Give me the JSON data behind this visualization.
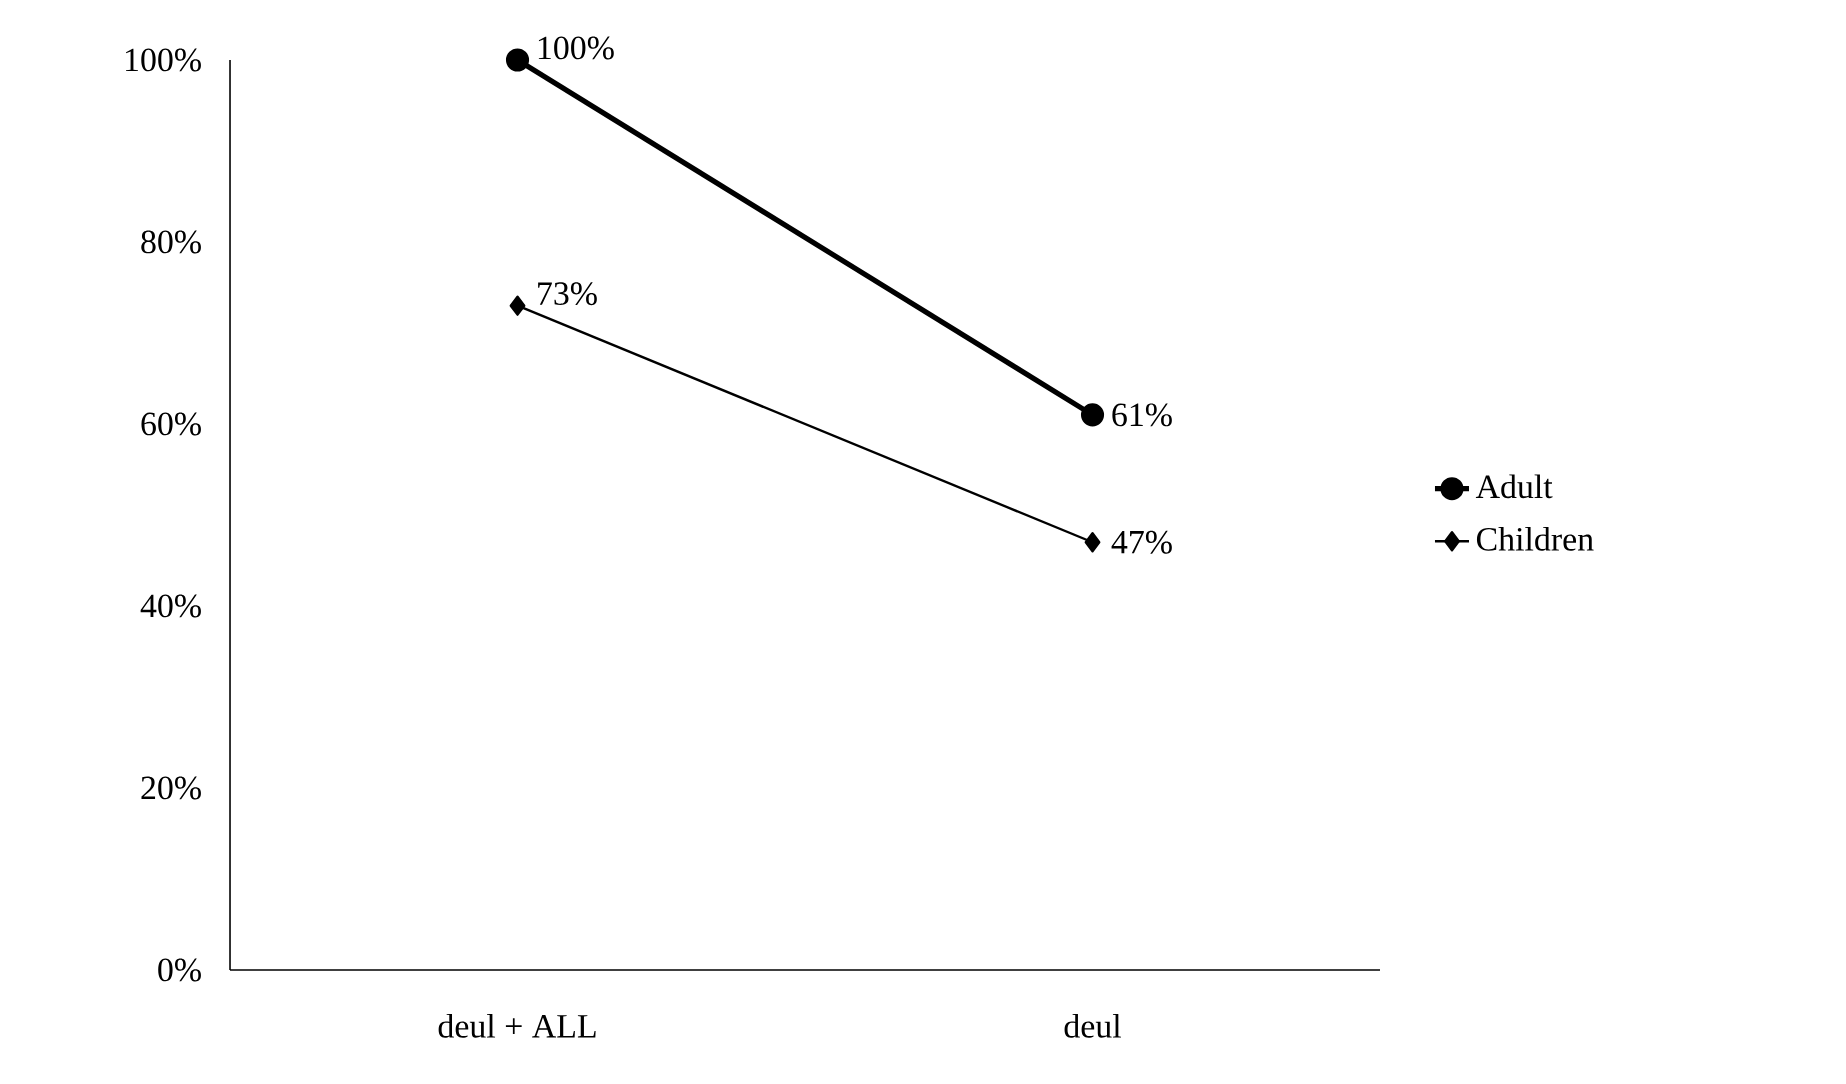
{
  "chart_data": {
    "type": "line",
    "categories": [
      "deul + ALL",
      "deul"
    ],
    "series": [
      {
        "name": "Adult",
        "color": "#000000",
        "values": [
          100,
          61
        ],
        "marker": "circle",
        "value_labels": [
          "100%",
          "61%"
        ]
      },
      {
        "name": "Children",
        "color": "#000000",
        "values": [
          73,
          47
        ],
        "marker": "diamond",
        "value_labels": [
          "73%",
          "47%"
        ]
      }
    ],
    "ylim": [
      0,
      100
    ],
    "yticks": [
      {
        "value": 0,
        "label": "0%"
      },
      {
        "value": 20,
        "label": "20%"
      },
      {
        "value": 40,
        "label": "40%"
      },
      {
        "value": 60,
        "label": "60%"
      },
      {
        "value": 80,
        "label": "80%"
      },
      {
        "value": 100,
        "label": "100%"
      }
    ],
    "grid": false,
    "legend": "right",
    "line_style": "solid"
  }
}
